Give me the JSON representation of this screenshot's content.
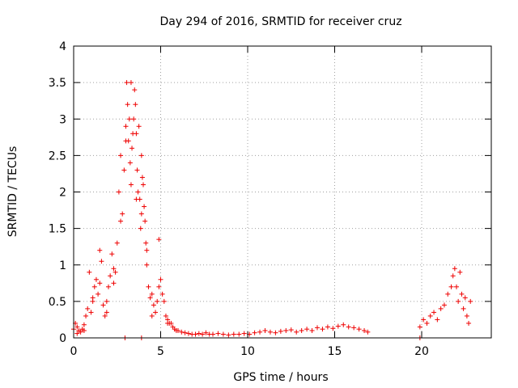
{
  "chart_data": {
    "type": "scatter",
    "title": "Day 294 of 2016, SRMTID for receiver cruz",
    "xlabel": "GPS time / hours",
    "ylabel": "SRMTID / TECUs",
    "xlim": [
      0,
      24
    ],
    "ylim": [
      0,
      4
    ],
    "xticks": [
      0,
      5,
      10,
      15,
      20
    ],
    "yticks": [
      0,
      0.5,
      1,
      1.5,
      2,
      2.5,
      3,
      3.5,
      4
    ],
    "xtick_labels": [
      "0",
      "5",
      "10",
      "15",
      "20"
    ],
    "ytick_labels": [
      "0",
      "0.5",
      "1",
      "1.5",
      "2",
      "2.5",
      "3",
      "3.5",
      "4"
    ],
    "grid": true,
    "marker": "+",
    "color": "#ee0000",
    "series": [
      {
        "name": "SRMTID",
        "x": [
          0.0,
          0.1,
          0.2,
          0.3,
          0.4,
          0.5,
          0.6,
          0.7,
          0.8,
          0.9,
          1.0,
          1.1,
          1.2,
          1.3,
          1.4,
          1.5,
          1.6,
          1.7,
          1.8,
          1.9,
          2.0,
          2.1,
          2.2,
          2.3,
          2.4,
          2.5,
          2.6,
          2.7,
          2.8,
          2.9,
          3.0,
          3.05,
          3.1,
          3.15,
          3.2,
          3.25,
          3.3,
          3.35,
          3.4,
          3.45,
          3.5,
          3.55,
          3.6,
          3.65,
          3.7,
          3.75,
          3.8,
          3.85,
          3.9,
          3.95,
          4.0,
          4.05,
          4.1,
          4.15,
          4.2,
          4.3,
          4.4,
          4.5,
          4.6,
          4.7,
          4.8,
          4.9,
          5.0,
          5.1,
          5.2,
          5.3,
          5.4,
          5.5,
          5.6,
          5.7,
          5.8,
          5.9,
          6.0,
          6.2,
          6.4,
          6.6,
          6.8,
          7.0,
          7.2,
          7.4,
          7.6,
          7.8,
          8.0,
          8.3,
          8.6,
          8.9,
          9.2,
          9.5,
          9.8,
          10.1,
          10.4,
          10.7,
          11.0,
          11.3,
          11.6,
          11.9,
          12.2,
          12.5,
          12.8,
          13.1,
          13.4,
          13.7,
          14.0,
          14.3,
          14.6,
          14.9,
          15.2,
          15.5,
          15.8,
          16.1,
          16.4,
          16.7,
          16.9,
          19.9,
          20.1,
          20.3,
          20.5,
          20.7,
          20.9,
          21.1,
          21.3,
          21.5,
          21.7,
          21.8,
          21.9,
          22.0,
          22.1,
          22.2,
          22.3,
          22.4,
          22.5,
          22.6,
          22.7,
          22.8,
          0.2,
          0.6,
          1.1,
          1.5,
          1.9,
          2.3,
          2.7,
          3.0,
          3.3,
          3.6,
          3.9,
          4.2,
          4.5,
          4.9,
          5.4,
          2.95,
          3.9,
          19.9
        ],
        "y": [
          0.12,
          0.2,
          0.15,
          0.1,
          0.08,
          0.12,
          0.1,
          0.3,
          0.4,
          0.9,
          0.35,
          0.55,
          0.7,
          0.8,
          0.6,
          1.2,
          1.05,
          0.45,
          0.3,
          0.5,
          0.7,
          0.85,
          1.15,
          0.75,
          0.9,
          1.3,
          2.0,
          2.5,
          1.7,
          2.3,
          2.9,
          3.5,
          3.2,
          2.7,
          3.0,
          2.4,
          2.1,
          2.6,
          2.8,
          3.0,
          3.4,
          3.2,
          2.8,
          2.3,
          2.0,
          2.9,
          1.9,
          1.5,
          1.7,
          2.2,
          2.1,
          1.8,
          1.6,
          1.3,
          1.0,
          0.7,
          0.55,
          0.6,
          0.45,
          0.35,
          0.5,
          1.35,
          0.8,
          0.6,
          0.5,
          0.3,
          0.25,
          0.2,
          0.2,
          0.15,
          0.12,
          0.1,
          0.1,
          0.08,
          0.07,
          0.06,
          0.05,
          0.05,
          0.06,
          0.05,
          0.07,
          0.05,
          0.05,
          0.06,
          0.05,
          0.04,
          0.05,
          0.05,
          0.06,
          0.05,
          0.07,
          0.08,
          0.1,
          0.08,
          0.07,
          0.09,
          0.1,
          0.11,
          0.08,
          0.1,
          0.12,
          0.1,
          0.14,
          0.12,
          0.15,
          0.13,
          0.16,
          0.18,
          0.15,
          0.14,
          0.12,
          0.1,
          0.08,
          0.15,
          0.25,
          0.2,
          0.3,
          0.35,
          0.25,
          0.4,
          0.45,
          0.6,
          0.7,
          0.85,
          0.95,
          0.7,
          0.5,
          0.9,
          0.6,
          0.4,
          0.55,
          0.3,
          0.2,
          0.5,
          0.06,
          0.18,
          0.5,
          0.75,
          0.35,
          0.95,
          1.6,
          2.7,
          3.5,
          1.9,
          2.5,
          1.2,
          0.3,
          0.7,
          0.2,
          0.0,
          0.0,
          0.0
        ]
      }
    ]
  }
}
